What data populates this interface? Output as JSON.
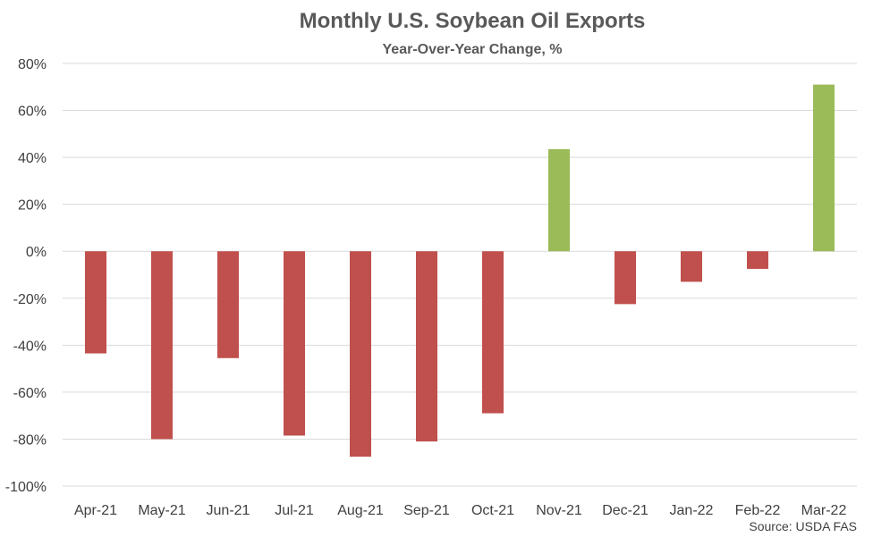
{
  "chart_data": {
    "type": "bar",
    "title": "Monthly U.S. Soybean Oil Exports",
    "subtitle": "Year-Over-Year Change, %",
    "xlabel": "",
    "ylabel": "",
    "categories": [
      "Apr-21",
      "May-21",
      "Jun-21",
      "Jul-21",
      "Aug-21",
      "Sep-21",
      "Oct-21",
      "Nov-21",
      "Dec-21",
      "Jan-22",
      "Feb-22",
      "Mar-22"
    ],
    "values": [
      -43.5,
      -80,
      -45.5,
      -78.5,
      -87.5,
      -81,
      -69,
      43.5,
      -22.5,
      -13,
      -7.5,
      71
    ],
    "ylim": [
      -100,
      80
    ],
    "yticks": [
      80,
      60,
      40,
      20,
      0,
      -20,
      -40,
      -60,
      -80,
      -100
    ],
    "ytick_labels": [
      "80%",
      "60%",
      "40%",
      "20%",
      "0%",
      "-20%",
      "-40%",
      "-60%",
      "-80%",
      "-100%"
    ],
    "grid": true,
    "legend": "none",
    "source": "Source: USDA FAS",
    "colors": {
      "negative": "#c0504d",
      "positive": "#9bbb59",
      "grid": "#d9d9d9",
      "text": "#404040",
      "title": "#595959"
    }
  }
}
